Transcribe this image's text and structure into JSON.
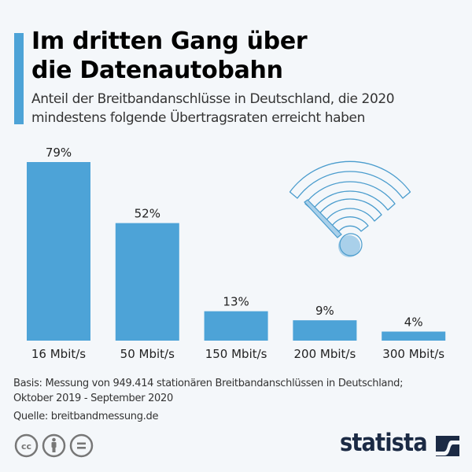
{
  "header": {
    "title_line1": "Im dritten Gang über",
    "title_line2": "die Datenautobahn",
    "subtitle_line1": "Anteil der Breitbandanschlüsse in Deutschland, die 2020",
    "subtitle_line2": "mindestens folgende Übertragsraten erreicht haben"
  },
  "colors": {
    "accent": "#4da3d7",
    "bar": "#4da3d7",
    "background": "#f4f7fa",
    "logo": "#1b2a44"
  },
  "chart_data": {
    "type": "bar",
    "title": "Im dritten Gang über die Datenautobahn",
    "subtitle": "Anteil der Breitbandanschlüsse in Deutschland, die 2020 mindestens folgende Übertragsraten erreicht haben",
    "categories": [
      "16 Mbit/s",
      "50 Mbit/s",
      "150 Mbit/s",
      "200 Mbit/s",
      "300 Mbit/s"
    ],
    "values": [
      79,
      52,
      13,
      9,
      4
    ],
    "value_labels": [
      "79%",
      "52%",
      "13%",
      "9%",
      "4%"
    ],
    "unit": "%",
    "xlabel": "",
    "ylabel": "",
    "ylim": [
      0,
      79
    ],
    "grid": false,
    "legend": "none"
  },
  "illustration": {
    "icon": "wifi-speedometer-icon"
  },
  "footer": {
    "basis_line1": "Basis: Messung von 949.414 stationären Breitbandanschlüssen in Deutschland;",
    "basis_line2": "Oktober 2019 - September 2020",
    "source": "Quelle: breitbandmessung.de",
    "license_icons": [
      "cc-icon",
      "attribution-icon",
      "no-derivatives-icon"
    ],
    "logo_text": "statista"
  }
}
